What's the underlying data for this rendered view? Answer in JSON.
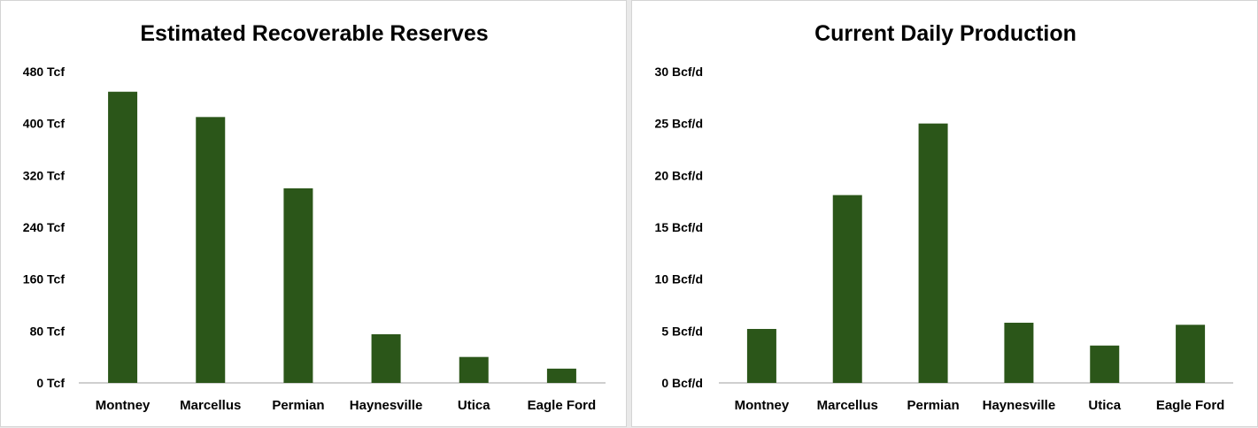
{
  "colors": {
    "bar": "#2b5619",
    "axis": "#bfbfbf",
    "background": "#ffffff"
  },
  "chart_data": [
    {
      "type": "bar",
      "title": "Estimated Recoverable Reserves",
      "xlabel": "",
      "ylabel": "",
      "categories": [
        "Montney",
        "Marcellus",
        "Permian",
        "Haynesville",
        "Utica",
        "Eagle Ford"
      ],
      "values": [
        449,
        410,
        300,
        75,
        40,
        22
      ],
      "ylim": [
        0,
        480
      ],
      "yticks": [
        0,
        80,
        160,
        240,
        320,
        400,
        480
      ],
      "ytick_labels": [
        "0 Tcf",
        "80 Tcf",
        "160 Tcf",
        "240 Tcf",
        "320 Tcf",
        "400 Tcf",
        "480 Tcf"
      ],
      "grid": false,
      "legend": "none"
    },
    {
      "type": "bar",
      "title": "Current Daily Production",
      "xlabel": "",
      "ylabel": "",
      "categories": [
        "Montney",
        "Marcellus",
        "Permian",
        "Haynesville",
        "Utica",
        "Eagle Ford"
      ],
      "values": [
        5.2,
        18.1,
        25,
        5.8,
        3.6,
        5.6
      ],
      "ylim": [
        0,
        30
      ],
      "yticks": [
        0,
        5,
        10,
        15,
        20,
        25,
        30
      ],
      "ytick_labels": [
        "0 Bcf/d",
        "5 Bcf/d",
        "10 Bcf/d",
        "15 Bcf/d",
        "20 Bcf/d",
        "25 Bcf/d",
        "30 Bcf/d"
      ],
      "grid": false,
      "legend": "none"
    }
  ]
}
